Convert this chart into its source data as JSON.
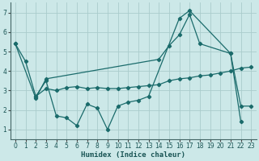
{
  "xlabel": "Humidex (Indice chaleur)",
  "bg_color": "#cce8e8",
  "grid_color": "#aacccc",
  "line_color": "#1a6b6b",
  "xlim": [
    -0.5,
    23.5
  ],
  "ylim": [
    0.5,
    7.5
  ],
  "xticks": [
    0,
    1,
    2,
    3,
    4,
    5,
    6,
    7,
    8,
    9,
    10,
    11,
    12,
    13,
    14,
    15,
    16,
    17,
    18,
    19,
    20,
    21,
    22,
    23
  ],
  "yticks": [
    1,
    2,
    3,
    4,
    5,
    6,
    7
  ],
  "series": [
    {
      "x": [
        0,
        1,
        2,
        3,
        4,
        5,
        6,
        7,
        8,
        9,
        10,
        11,
        12,
        13,
        16,
        17,
        21,
        22
      ],
      "y": [
        5.4,
        4.5,
        2.7,
        3.5,
        1.7,
        1.6,
        1.2,
        2.3,
        2.1,
        1.0,
        2.2,
        2.4,
        2.5,
        2.7,
        6.7,
        7.1,
        4.9,
        1.4
      ]
    },
    {
      "x": [
        0,
        2,
        3,
        14,
        15,
        16,
        17,
        18,
        21,
        22,
        23
      ],
      "y": [
        5.4,
        2.6,
        3.6,
        4.6,
        5.3,
        5.85,
        6.9,
        5.4,
        4.9,
        2.2,
        2.2
      ]
    },
    {
      "x": [
        2,
        3,
        4,
        5,
        6,
        7,
        8,
        9,
        10,
        11,
        12,
        13,
        14,
        15,
        16,
        17,
        18,
        19,
        20,
        21,
        22,
        23
      ],
      "y": [
        2.7,
        3.1,
        3.0,
        3.15,
        3.2,
        3.1,
        3.15,
        3.1,
        3.1,
        3.15,
        3.2,
        3.25,
        3.3,
        3.5,
        3.6,
        3.65,
        3.75,
        3.8,
        3.9,
        4.0,
        4.15,
        4.2
      ]
    }
  ]
}
